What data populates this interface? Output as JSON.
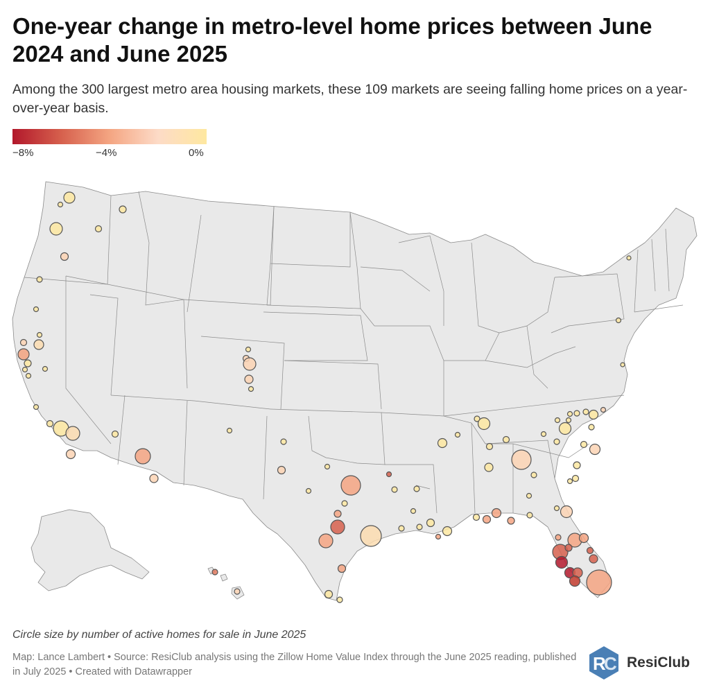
{
  "title": "One-year change in metro-level home prices between June 2024 and June 2025",
  "subtitle": "Among the 300 largest metro area housing markets, these 109 markets are seeing falling home prices on a year-over-year basis.",
  "legend": {
    "min_label": "−8%",
    "mid_label": "−4%",
    "max_label": "0%",
    "colors": [
      "#b2182b",
      "#f4a582",
      "#fee8a0"
    ]
  },
  "note": "Circle size by number of active homes for sale in June 2025",
  "source": "Map: Lance Lambert • Source: ResiClub analysis using the Zillow Home Value Index through the June 2025 reading, published in July 2025 • Created with Datawrapper",
  "logo": {
    "text": "ResiClub",
    "icon": "resiclub-logo-icon",
    "color": "#4a7fb5"
  },
  "map": {
    "land_color": "#e9e9e9",
    "border_color": "#8a8a8a",
    "circle_stroke": "#555555"
  }
}
